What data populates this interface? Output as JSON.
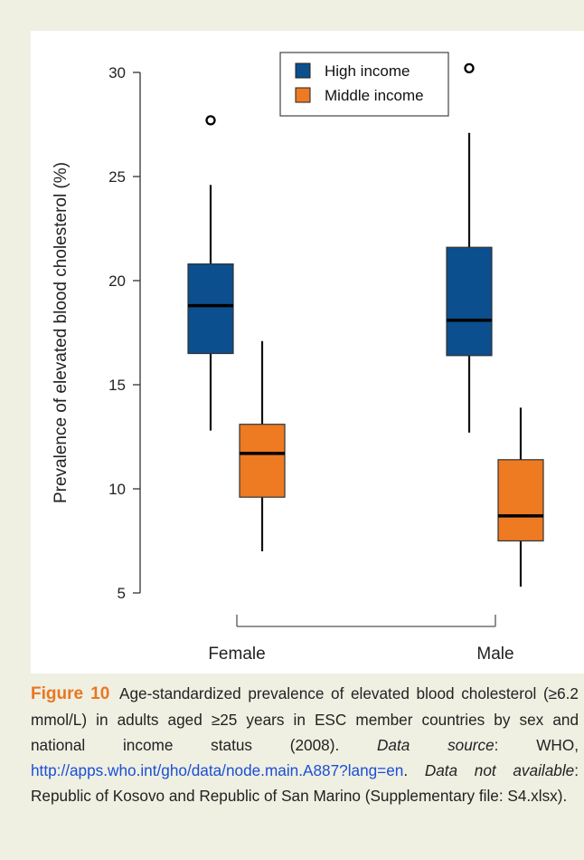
{
  "chart_data": {
    "type": "boxplot",
    "ylabel": "Prevalence of elevated blood cholesterol (%)",
    "xlabel": "",
    "ylim": [
      5,
      30
    ],
    "yticks": [
      "5",
      "10",
      "15",
      "20",
      "25",
      "30"
    ],
    "categories": [
      "Female",
      "Male"
    ],
    "legend": {
      "position": "top-right",
      "entries": [
        "High income",
        "Middle income"
      ]
    },
    "series": [
      {
        "name": "High income",
        "color": "#0b4f8e",
        "boxes": [
          {
            "category": "Female",
            "whisker_low": 12.8,
            "q1": 16.5,
            "median": 18.8,
            "q3": 20.8,
            "whisker_high": 24.6,
            "outliers": [
              27.7
            ]
          },
          {
            "category": "Male",
            "whisker_low": 12.7,
            "q1": 16.4,
            "median": 18.1,
            "q3": 21.6,
            "whisker_high": 27.1,
            "outliers": [
              30.2
            ]
          }
        ]
      },
      {
        "name": "Middle income",
        "color": "#ee7a22",
        "boxes": [
          {
            "category": "Female",
            "whisker_low": 7.0,
            "q1": 9.6,
            "median": 11.7,
            "q3": 13.1,
            "whisker_high": 17.1,
            "outliers": []
          },
          {
            "category": "Male",
            "whisker_low": 5.3,
            "q1": 7.5,
            "median": 8.7,
            "q3": 11.4,
            "whisker_high": 13.9,
            "outliers": []
          }
        ]
      }
    ]
  },
  "caption": {
    "label": "Figure 10",
    "text1": "Age-standardized prevalence of elevated blood cholesterol (≥6.2 mmol/L) in adults aged ≥25 years in ESC member countries by sex and national income status (2008).",
    "source_label": "Data source",
    "source_prefix": ": WHO, ",
    "source_url": "http://apps.who.int/gho/data/node.main.A887?lang=en",
    "period1": ". ",
    "na_label": "Data not available",
    "na_text": ": Republic of Kosovo and Republic of San Marino (Supplementary file: S4.xlsx)."
  }
}
